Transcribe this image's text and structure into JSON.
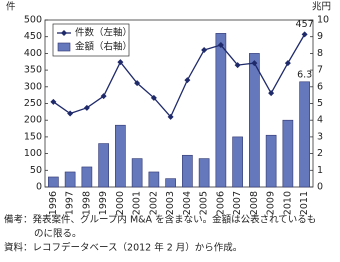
{
  "chart_data": {
    "type": "combo",
    "y_unit": "件",
    "y2_unit": "兆円",
    "categories": [
      "1996",
      "1997",
      "1998",
      "1999",
      "2000",
      "2001",
      "2002",
      "2003",
      "2004",
      "2005",
      "2006",
      "2007",
      "2008",
      "2009",
      "2010",
      "2011"
    ],
    "series": [
      {
        "name": "件数（左軸）",
        "type": "line",
        "color": "#1f2a6b",
        "axis": "y",
        "values": [
          255,
          220,
          237,
          272,
          374,
          311,
          267,
          210,
          320,
          410,
          425,
          365,
          371,
          281,
          371,
          457
        ],
        "value_labels": [
          null,
          null,
          null,
          null,
          null,
          null,
          null,
          null,
          null,
          null,
          null,
          null,
          null,
          null,
          null,
          "457"
        ]
      },
      {
        "name": "金額（右軸）",
        "type": "bar",
        "color": "#6678bc",
        "axis": "y2",
        "values": [
          0.6,
          0.9,
          1.2,
          2.6,
          3.7,
          1.7,
          0.9,
          0.5,
          1.9,
          1.7,
          9.2,
          3.0,
          8.0,
          3.1,
          4.0,
          6.3
        ],
        "value_labels": [
          null,
          null,
          null,
          null,
          null,
          null,
          null,
          null,
          null,
          null,
          null,
          null,
          null,
          null,
          null,
          "6.3"
        ]
      }
    ],
    "ylim": [
      0,
      500
    ],
    "yticks": [
      0,
      50,
      100,
      150,
      200,
      250,
      300,
      350,
      400,
      450,
      500
    ],
    "y2lim": [
      0,
      10
    ],
    "y2ticks": [
      0,
      1,
      2,
      3,
      4,
      5,
      6,
      7,
      8,
      9,
      10
    ],
    "legend": "top-left",
    "notes": [
      "備考：発表案件、グループ内 M&A を含まない。金額は公表されているも",
      "のに限る。",
      "資料：レコフデータベース（2012 年 2 月）から作成。"
    ]
  }
}
